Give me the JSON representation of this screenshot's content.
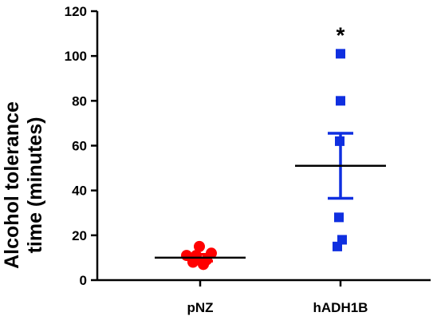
{
  "chart_data": {
    "type": "scatter",
    "title": "",
    "xlabel": "",
    "ylabel": "Alcohol tolerance time (minutes)",
    "ylabel_lines": [
      "Alcohol tolerance",
      "time (minutes)"
    ],
    "ylim": [
      0,
      120
    ],
    "yticks": [
      0,
      20,
      40,
      60,
      80,
      100,
      120
    ],
    "categories": [
      "pNZ",
      "hADH1B"
    ],
    "grid": false,
    "legend": "none",
    "series": [
      {
        "category": "pNZ",
        "marker": "circle",
        "color": "#ff0000",
        "points": [
          {
            "x": -0.17,
            "y": 11
          },
          {
            "x": -0.09,
            "y": 8
          },
          {
            "x": -0.05,
            "y": 11
          },
          {
            "x": -0.01,
            "y": 15
          },
          {
            "x": 0.04,
            "y": 7
          },
          {
            "x": 0.08,
            "y": 9
          },
          {
            "x": 0.14,
            "y": 12
          }
        ],
        "mean": 10,
        "error": 1.5
      },
      {
        "category": "hADH1B",
        "marker": "square",
        "color": "#0f2fe0",
        "points": [
          {
            "x": -0.04,
            "y": 15
          },
          {
            "x": 0.02,
            "y": 18
          },
          {
            "x": -0.02,
            "y": 28
          },
          {
            "x": -0.01,
            "y": 62
          },
          {
            "x": 0.0,
            "y": 80
          },
          {
            "x": 0.0,
            "y": 101
          }
        ],
        "mean": 51,
        "error": 14.5
      }
    ],
    "annotations": [
      {
        "category": "hADH1B",
        "text": "*",
        "y": 113
      }
    ]
  }
}
